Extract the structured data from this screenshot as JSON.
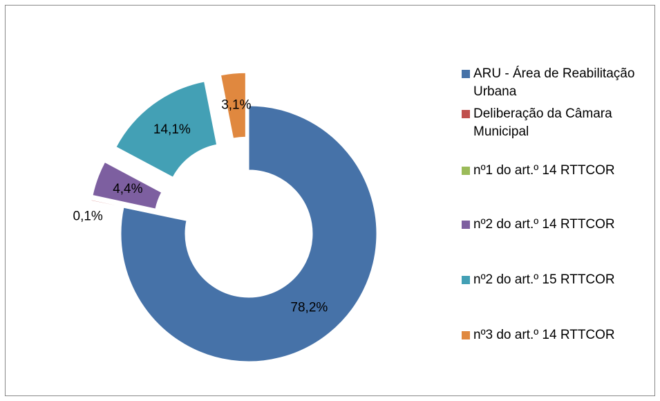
{
  "chart_data": {
    "type": "donut",
    "categories": [
      "ARU - Área de Reabilitação Urbana",
      "Deliberação da Câmara Municipal",
      "nº1 do art.º 14 RTTCOR",
      "nº2 do art.º 14 RTTCOR",
      "nº2 do art.º 15 RTTCOR",
      "nº3 do art.º 14 RTTCOR"
    ],
    "values": [
      78.2,
      0.1,
      0,
      4.4,
      14.1,
      3.1
    ],
    "value_labels": [
      "78,2%",
      "0,1%",
      null,
      "4,4%",
      "14,1%",
      "3,1%"
    ],
    "colors": [
      "#4672a8",
      "#c0504d",
      "#9bbb59",
      "#7d5fa0",
      "#43a0b5",
      "#e0883f"
    ],
    "legend": "right"
  }
}
